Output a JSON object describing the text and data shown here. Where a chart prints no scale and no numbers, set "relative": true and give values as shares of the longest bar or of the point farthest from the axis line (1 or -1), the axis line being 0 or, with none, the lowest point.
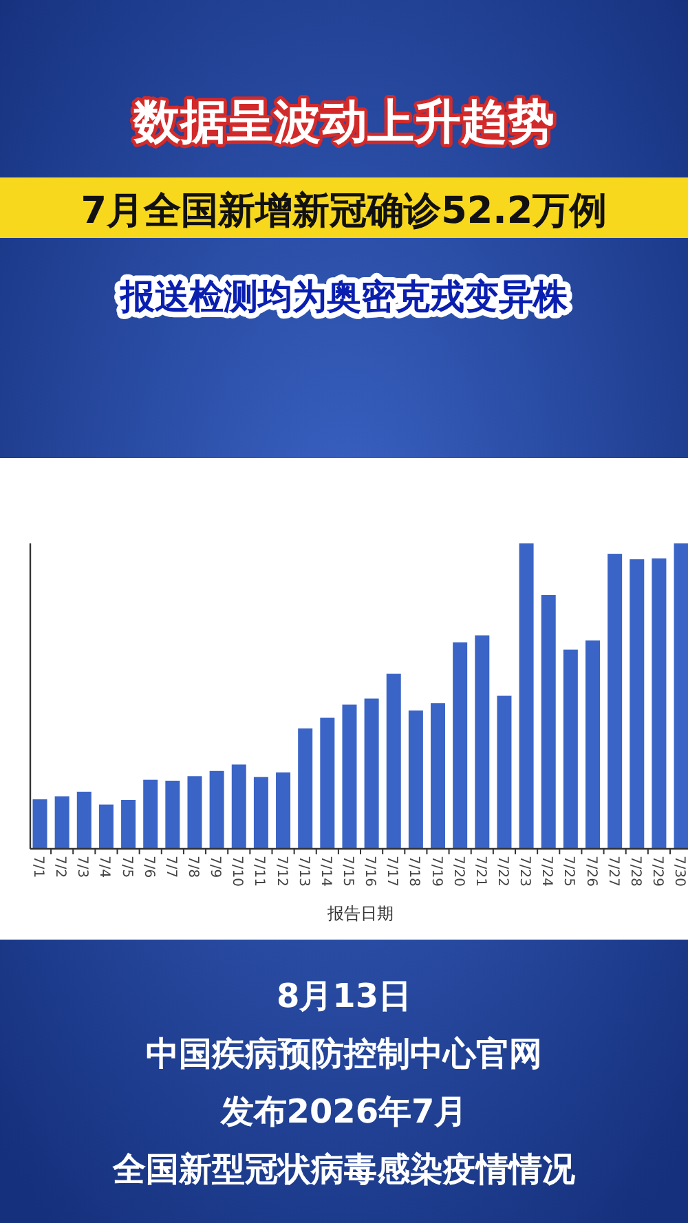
{
  "chart_data": {
    "type": "bar",
    "title": "数据呈波动上升趋势",
    "subtitle": "7月全国新增新冠确诊52.2万例",
    "xlabel": "报告日期",
    "relative": true,
    "color": "#3a64c6",
    "categories": [
      "7/1",
      "7/2",
      "7/3",
      "7/4",
      "7/5",
      "7/6",
      "7/7",
      "7/8",
      "7/9",
      "7/10",
      "7/11",
      "7/12",
      "7/13",
      "7/14",
      "7/15",
      "7/16",
      "7/17",
      "7/18",
      "7/19",
      "7/20",
      "7/21",
      "7/22",
      "7/23",
      "7/24",
      "7/25",
      "7/26",
      "7/27",
      "7/28",
      "7/29",
      "7/30"
    ],
    "values": [
      0.162,
      0.172,
      0.187,
      0.145,
      0.16,
      0.226,
      0.223,
      0.238,
      0.255,
      0.276,
      0.235,
      0.25,
      0.394,
      0.429,
      0.472,
      0.492,
      0.573,
      0.453,
      0.477,
      0.676,
      0.699,
      0.501,
      1,
      0.831,
      0.652,
      0.682,
      0.966,
      0.948,
      0.951,
      1
    ],
    "annotations": [
      "报送检测均为奥密克戎变异株",
      "8月13日",
      "中国疾病预防控制中心官网",
      "发布2026年7月",
      "全国新型冠状病毒感染疫情情况"
    ]
  }
}
